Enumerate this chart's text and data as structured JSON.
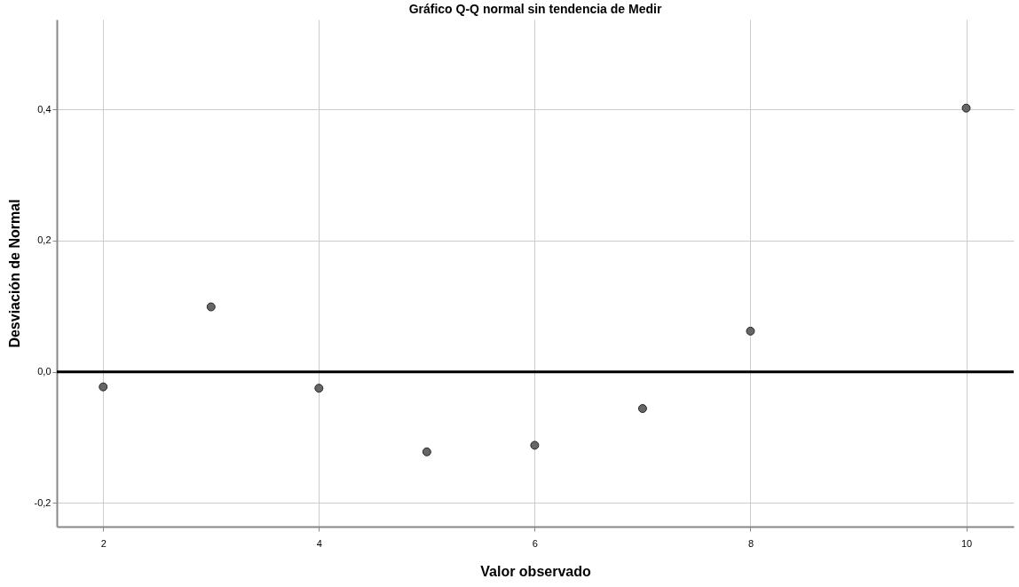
{
  "chart_data": {
    "type": "scatter",
    "title": "Gráfico Q-Q normal sin tendencia de Medir",
    "xlabel": "Valor observado",
    "ylabel": "Desviación de Normal",
    "series": [
      {
        "color": "#666666",
        "x": [
          2,
          3,
          4,
          5,
          6,
          7,
          8,
          10
        ],
        "values": [
          -0.023,
          0.099,
          -0.025,
          -0.122,
          -0.112,
          -0.056,
          0.062,
          0.402
        ]
      }
    ],
    "xlim": [
      1.57,
      10.44
    ],
    "xticks": [
      2,
      4,
      6,
      8,
      10
    ],
    "ylim": [
      -0.236,
      0.537
    ],
    "yticks": [
      {
        "value": -0.2,
        "label": "-0,2"
      },
      {
        "value": 0,
        "label": "0,0"
      },
      {
        "value": 0.2,
        "label": "0,2"
      },
      {
        "value": 0.4,
        "label": "0,4"
      }
    ],
    "ref_lines": [
      {
        "axis": "y",
        "value": 0,
        "color": "#000000"
      }
    ],
    "grid": true,
    "marker": "circle"
  }
}
